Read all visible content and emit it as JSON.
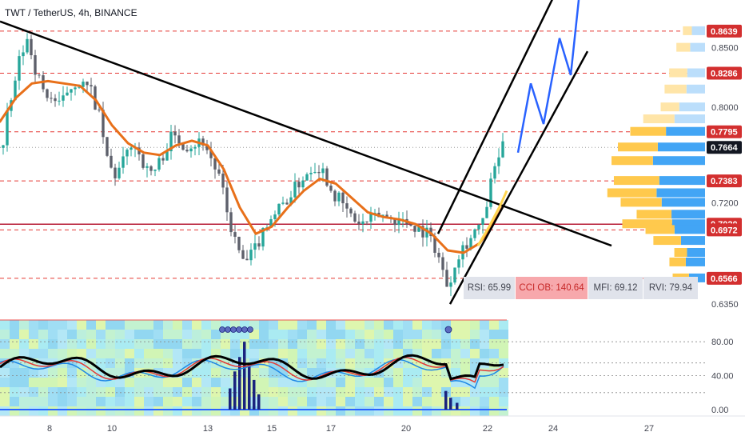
{
  "header": {
    "title": "TWT / TetherUS, 4h, BINANCE"
  },
  "colors": {
    "up": "#26a69a",
    "down": "#5d606b",
    "ema": "#e8701a",
    "trend": "#000000",
    "projection": "#2962ff",
    "level_red": "#e53935",
    "support_line": "#b71c36",
    "badge_red": "#d32f2f",
    "badge_dark": "#131722"
  },
  "indicators": {
    "rsi": "RSI: 65.99",
    "cci": "CCI OB: 140.64",
    "mfi": "MFI: 69.12",
    "rvi": "RVI: 79.94"
  },
  "chart_data": {
    "type": "candlestick",
    "symbol": "TWT / TetherUS",
    "interval": "4h",
    "exchange": "BINANCE",
    "x_ticks": [
      "8",
      "10",
      "13",
      "15",
      "17",
      "20",
      "22",
      "24",
      "27"
    ],
    "price_axis_ticks": [
      "0.8500",
      "0.8000",
      "0.7200",
      "0.6350"
    ],
    "price_labels": [
      {
        "text": "0.8639",
        "value": 0.8639,
        "style": "red"
      },
      {
        "text": "0.8286",
        "value": 0.8286,
        "style": "red"
      },
      {
        "text": "0.7795",
        "value": 0.7795,
        "style": "red"
      },
      {
        "text": "0.7664",
        "value": 0.7664,
        "style": "dark"
      },
      {
        "text": "0.7383",
        "value": 0.7383,
        "style": "red"
      },
      {
        "text": "0.7020",
        "value": 0.702,
        "style": "red"
      },
      {
        "text": "0.6972",
        "value": 0.6972,
        "style": "red"
      },
      {
        "text": "0.6566",
        "value": 0.6566,
        "style": "red"
      }
    ],
    "dashed_levels": [
      0.8639,
      0.8286,
      0.7795,
      0.7383,
      0.6972,
      0.6566
    ],
    "solid_level": 0.702,
    "price_range": [
      0.625,
      0.89
    ],
    "oscillator_ticks": [
      "80.00",
      "40.00",
      "0.00"
    ],
    "oscillator_range": [
      0,
      100
    ],
    "close_path": [
      [
        5,
        0.78
      ],
      [
        15,
        0.808
      ],
      [
        25,
        0.842
      ],
      [
        35,
        0.858
      ],
      [
        45,
        0.83
      ],
      [
        55,
        0.812
      ],
      [
        65,
        0.808
      ],
      [
        75,
        0.8
      ],
      [
        85,
        0.815
      ],
      [
        95,
        0.822
      ],
      [
        105,
        0.818
      ],
      [
        115,
        0.812
      ],
      [
        125,
        0.79
      ],
      [
        135,
        0.752
      ],
      [
        145,
        0.742
      ],
      [
        155,
        0.755
      ],
      [
        165,
        0.772
      ],
      [
        175,
        0.76
      ],
      [
        185,
        0.745
      ],
      [
        195,
        0.748
      ],
      [
        205,
        0.762
      ],
      [
        215,
        0.776
      ],
      [
        225,
        0.772
      ],
      [
        235,
        0.768
      ],
      [
        245,
        0.77
      ],
      [
        255,
        0.772
      ],
      [
        265,
        0.755
      ],
      [
        275,
        0.74
      ],
      [
        285,
        0.708
      ],
      [
        295,
        0.686
      ],
      [
        305,
        0.668
      ],
      [
        315,
        0.676
      ],
      [
        325,
        0.69
      ],
      [
        335,
        0.706
      ],
      [
        345,
        0.712
      ],
      [
        355,
        0.72
      ],
      [
        365,
        0.728
      ],
      [
        375,
        0.738
      ],
      [
        385,
        0.746
      ],
      [
        395,
        0.752
      ],
      [
        405,
        0.746
      ],
      [
        415,
        0.73
      ],
      [
        425,
        0.722
      ],
      [
        435,
        0.712
      ],
      [
        445,
        0.704
      ],
      [
        455,
        0.702
      ],
      [
        465,
        0.706
      ],
      [
        475,
        0.71
      ],
      [
        485,
        0.708
      ],
      [
        495,
        0.706
      ],
      [
        505,
        0.704
      ],
      [
        515,
        0.702
      ],
      [
        525,
        0.698
      ],
      [
        535,
        0.694
      ],
      [
        545,
        0.682
      ],
      [
        552,
        0.668
      ],
      [
        558,
        0.65
      ],
      [
        565,
        0.66
      ],
      [
        572,
        0.676
      ],
      [
        580,
        0.684
      ],
      [
        588,
        0.69
      ],
      [
        596,
        0.698
      ],
      [
        604,
        0.702
      ],
      [
        612,
        0.73
      ],
      [
        620,
        0.752
      ],
      [
        628,
        0.766
      ]
    ],
    "ema_path": [
      [
        0,
        0.788
      ],
      [
        20,
        0.808
      ],
      [
        40,
        0.82
      ],
      [
        60,
        0.822
      ],
      [
        80,
        0.82
      ],
      [
        100,
        0.818
      ],
      [
        120,
        0.806
      ],
      [
        140,
        0.785
      ],
      [
        160,
        0.77
      ],
      [
        180,
        0.762
      ],
      [
        200,
        0.76
      ],
      [
        220,
        0.768
      ],
      [
        240,
        0.772
      ],
      [
        260,
        0.768
      ],
      [
        280,
        0.748
      ],
      [
        300,
        0.716
      ],
      [
        320,
        0.694
      ],
      [
        340,
        0.7
      ],
      [
        360,
        0.716
      ],
      [
        380,
        0.73
      ],
      [
        400,
        0.74
      ],
      [
        420,
        0.736
      ],
      [
        440,
        0.724
      ],
      [
        460,
        0.712
      ],
      [
        480,
        0.708
      ],
      [
        500,
        0.706
      ],
      [
        520,
        0.702
      ],
      [
        540,
        0.694
      ],
      [
        560,
        0.68
      ],
      [
        580,
        0.678
      ],
      [
        600,
        0.686
      ],
      [
        615,
        0.7
      ],
      [
        630,
        0.718
      ]
    ],
    "trendlines": [
      {
        "x1": 0,
        "p1": 0.872,
        "x2": 765,
        "p2": 0.684
      },
      {
        "x1": 548,
        "p1": 0.694,
        "x2": 700,
        "p2": 0.903
      },
      {
        "x1": 563,
        "p1": 0.635,
        "x2": 735,
        "p2": 0.847
      }
    ],
    "projection_path": [
      [
        648,
        0.762
      ],
      [
        664,
        0.82
      ],
      [
        680,
        0.786
      ],
      [
        700,
        0.858
      ],
      [
        714,
        0.827
      ],
      [
        724,
        0.89
      ]
    ],
    "volume_profile_levels": [
      0.8639,
      0.85,
      0.8286,
      0.815,
      0.8,
      0.79,
      0.7795,
      0.7664,
      0.755,
      0.7383,
      0.728,
      0.72,
      0.71,
      0.702,
      0.6972,
      0.688,
      0.678,
      0.67,
      0.6566
    ]
  }
}
